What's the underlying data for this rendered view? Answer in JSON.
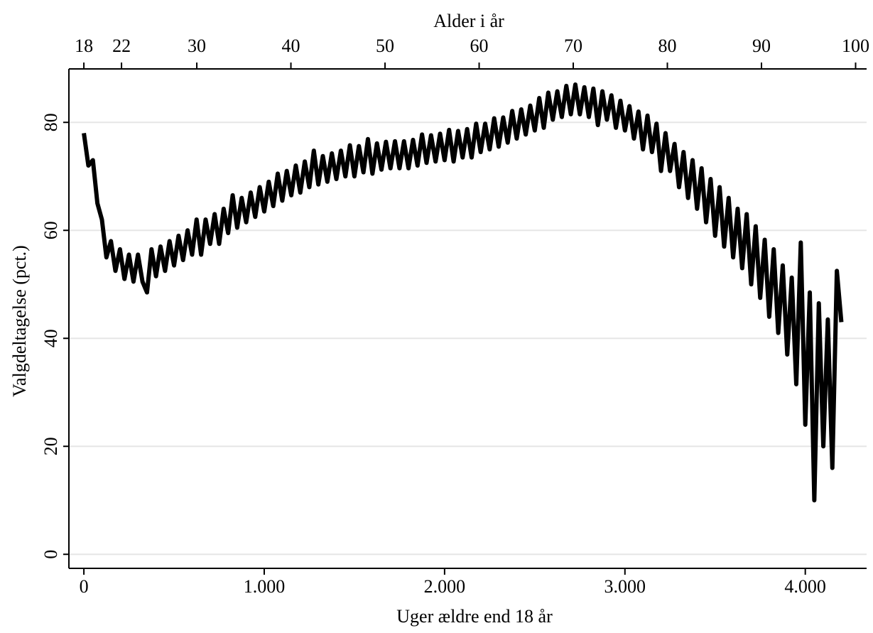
{
  "chart_data": {
    "type": "line",
    "xlabel": "Uger ældre end 18 år",
    "ylabel": "Valgdeltagelse (pct.)",
    "x2label": "Alder i år",
    "xlim": [
      -83,
      4340
    ],
    "xticks": [
      0,
      {
        "value": 1000,
        "label": "1.000"
      },
      {
        "value": 2000,
        "label": "2.000"
      },
      {
        "value": 3000,
        "label": "3.000"
      },
      {
        "value": 4000,
        "label": "4.000"
      }
    ],
    "x2lim": [
      16.41,
      101.17
    ],
    "x2ticks": [
      18,
      22,
      30,
      40,
      50,
      60,
      70,
      80,
      90,
      100
    ],
    "ylim": [
      -2.6,
      89.9
    ],
    "yticks": [
      0,
      20,
      40,
      60,
      80
    ],
    "grid": true,
    "x": [
      0,
      25,
      50,
      75,
      100,
      125,
      150,
      175,
      200,
      225,
      250,
      275,
      300,
      325,
      350,
      375,
      400,
      425,
      450,
      475,
      500,
      525,
      550,
      575,
      600,
      625,
      650,
      675,
      700,
      725,
      750,
      775,
      800,
      825,
      850,
      875,
      900,
      925,
      950,
      975,
      1000,
      1025,
      1050,
      1075,
      1100,
      1125,
      1150,
      1175,
      1200,
      1225,
      1250,
      1275,
      1300,
      1325,
      1350,
      1375,
      1400,
      1425,
      1450,
      1475,
      1500,
      1525,
      1550,
      1575,
      1600,
      1625,
      1650,
      1675,
      1700,
      1725,
      1750,
      1775,
      1800,
      1825,
      1850,
      1875,
      1900,
      1925,
      1950,
      1975,
      2000,
      2025,
      2050,
      2075,
      2100,
      2125,
      2150,
      2175,
      2200,
      2225,
      2250,
      2275,
      2300,
      2325,
      2350,
      2375,
      2400,
      2425,
      2450,
      2475,
      2500,
      2525,
      2550,
      2575,
      2600,
      2625,
      2650,
      2675,
      2700,
      2725,
      2750,
      2775,
      2800,
      2825,
      2850,
      2875,
      2900,
      2925,
      2950,
      2975,
      3000,
      3025,
      3050,
      3075,
      3100,
      3125,
      3150,
      3175,
      3200,
      3225,
      3250,
      3275,
      3300,
      3325,
      3350,
      3375,
      3400,
      3425,
      3450,
      3475,
      3500,
      3525,
      3550,
      3575,
      3600,
      3625,
      3650,
      3675,
      3700,
      3725,
      3750,
      3775,
      3800,
      3825,
      3850,
      3875,
      3900,
      3925,
      3950,
      3975,
      4000,
      4025,
      4050,
      4075,
      4100,
      4125,
      4150,
      4175,
      4200
    ],
    "series": [
      {
        "color": "#000000",
        "values": [
          78,
          72,
          73,
          65,
          62,
          55,
          58,
          52.5,
          56.5,
          51,
          55.5,
          50.5,
          55.5,
          50.5,
          48.5,
          56.5,
          51.5,
          57,
          52.5,
          58,
          53.5,
          59,
          54.5,
          60,
          55.5,
          62,
          55.5,
          62,
          57.5,
          63,
          57.5,
          64,
          59.5,
          66.5,
          60.5,
          66,
          61.5,
          67,
          62.5,
          68,
          63.5,
          69,
          64.5,
          70.5,
          65.5,
          71,
          66.5,
          72,
          67,
          72.75,
          68,
          74.75,
          68.5,
          73.75,
          69,
          74.25,
          69.5,
          74.75,
          70,
          75.75,
          70,
          75.6,
          70.75,
          76.9,
          70.5,
          76.1,
          71.25,
          76.4,
          71.5,
          76.5,
          71.5,
          76.5,
          71.5,
          76.75,
          72,
          77.75,
          72.5,
          77.6,
          72.75,
          77.9,
          73,
          78.6,
          72.75,
          78.4,
          73.5,
          78.75,
          73.5,
          79.75,
          74.5,
          79.75,
          75,
          80.75,
          75.5,
          80.9,
          76.25,
          82.1,
          77,
          82.4,
          77.75,
          83.1,
          78.5,
          84.5,
          79,
          85.5,
          80.5,
          85.75,
          81,
          86.75,
          81.5,
          87,
          81.5,
          86.5,
          81,
          86.25,
          79.5,
          85.75,
          80.5,
          85,
          79,
          84,
          78.5,
          83,
          77,
          82,
          75,
          81.25,
          74.5,
          79.75,
          71,
          78,
          71,
          76,
          68,
          74.5,
          66,
          73,
          64,
          71.5,
          61.5,
          69.5,
          59,
          68,
          57,
          66,
          55,
          64,
          53,
          63,
          50,
          60.75,
          47.5,
          58.25,
          44,
          56.5,
          41,
          53.5,
          37,
          51.25,
          31.5,
          57.75,
          24,
          48.5,
          10,
          46.5,
          20,
          43.5,
          16,
          52.5,
          43
        ]
      }
    ]
  }
}
